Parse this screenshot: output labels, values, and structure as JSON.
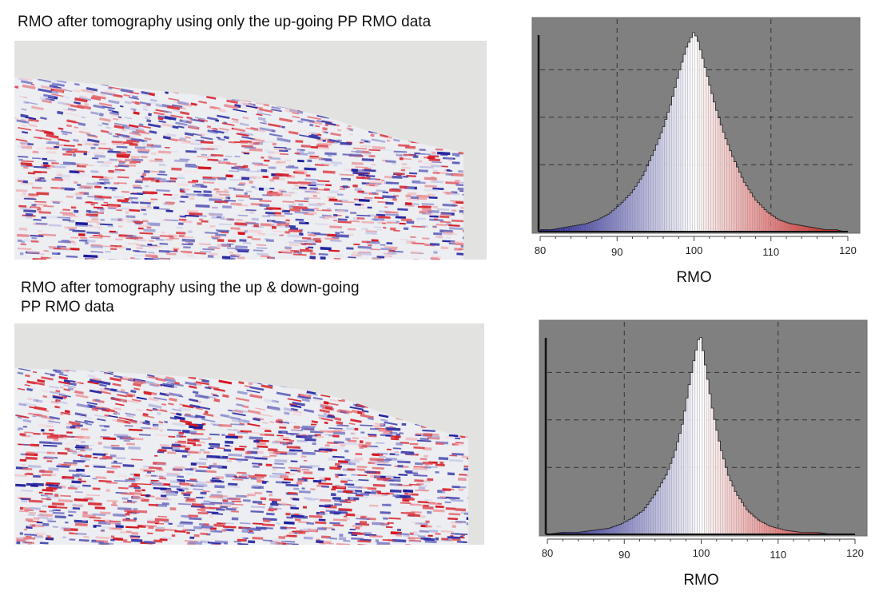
{
  "panels": [
    {
      "caption": "RMO after tomography using only the up-going PP RMO data",
      "seismic": {
        "colormap": [
          "#1a1a9c",
          "#ffffff",
          "#d4141e"
        ],
        "background": "#e2e3e1"
      }
    },
    {
      "caption_lines": [
        "RMO after tomography using the up & down-going",
        "PP RMO data"
      ],
      "seismic": {
        "colormap": [
          "#1a1a9c",
          "#ffffff",
          "#d4141e"
        ],
        "background": "#e2e3e1"
      }
    }
  ],
  "chart_data": [
    {
      "type": "bar",
      "title": "",
      "xlabel": "RMO",
      "ylabel": "",
      "xlim": [
        80,
        120
      ],
      "xticks": [
        "80",
        "90",
        "100",
        "110",
        "120"
      ],
      "grid": true,
      "background": "#808080",
      "colormap": [
        "#14148c",
        "#ffffff",
        "#c80a0a"
      ],
      "distribution": {
        "peak_x": 100,
        "width_left": 4.3,
        "width_right": 3.6,
        "shape": "laplace-like"
      },
      "x": [
        80.0,
        81.5,
        83.0,
        84.5,
        86.0,
        87.5,
        89.0,
        90.5,
        92.0,
        93.5,
        95.0,
        96.0,
        97.0,
        98.0,
        99.0,
        99.5,
        100.0,
        100.5,
        101.0,
        102.0,
        103.0,
        104.0,
        105.0,
        106.5,
        108.0,
        109.5,
        111.0,
        112.5,
        114.0,
        115.5,
        117.0,
        118.5,
        119.5
      ],
      "y": [
        0.01,
        0.01,
        0.02,
        0.03,
        0.04,
        0.06,
        0.09,
        0.14,
        0.2,
        0.29,
        0.42,
        0.52,
        0.64,
        0.79,
        0.92,
        0.96,
        1.0,
        0.96,
        0.89,
        0.74,
        0.6,
        0.48,
        0.38,
        0.25,
        0.16,
        0.1,
        0.06,
        0.04,
        0.03,
        0.02,
        0.01,
        0.01,
        0.0
      ]
    },
    {
      "type": "bar",
      "title": "",
      "xlabel": "RMO",
      "ylabel": "",
      "xlim": [
        80,
        120
      ],
      "xticks": [
        "80",
        "90",
        "100",
        "110",
        "120"
      ],
      "grid": true,
      "background": "#808080",
      "colormap": [
        "#14148c",
        "#ffffff",
        "#c80a0a"
      ],
      "distribution": {
        "peak_x": 99.8,
        "width_left": 2.8,
        "width_right": 2.7,
        "shape": "laplace-like"
      },
      "x": [
        80.0,
        82.0,
        84.0,
        86.0,
        88.0,
        89.5,
        91.0,
        92.5,
        94.0,
        95.5,
        96.5,
        97.5,
        98.5,
        99.0,
        99.5,
        99.8,
        100.0,
        100.5,
        101.0,
        101.5,
        102.5,
        103.5,
        104.5,
        106.0,
        107.5,
        109.0,
        111.0,
        113.0,
        115.0,
        117.0,
        119.0
      ],
      "y": [
        0.0,
        0.01,
        0.01,
        0.02,
        0.03,
        0.05,
        0.08,
        0.12,
        0.2,
        0.3,
        0.4,
        0.54,
        0.76,
        0.86,
        0.95,
        1.0,
        0.98,
        0.86,
        0.74,
        0.62,
        0.44,
        0.3,
        0.21,
        0.12,
        0.07,
        0.04,
        0.02,
        0.01,
        0.01,
        0.0,
        0.0
      ]
    }
  ]
}
